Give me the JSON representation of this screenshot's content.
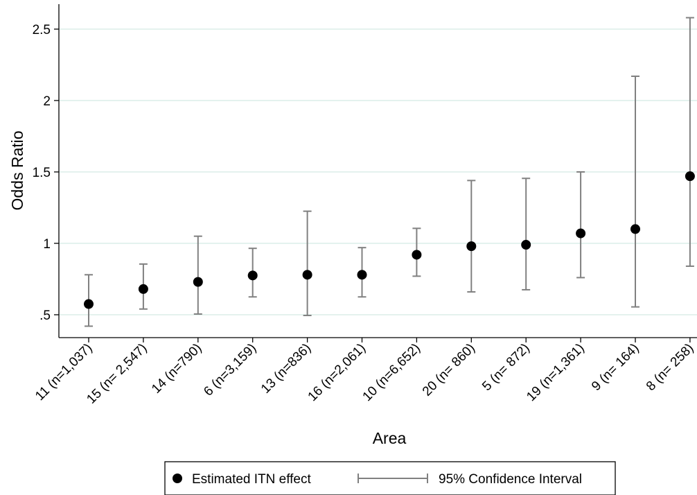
{
  "chart_data": {
    "type": "scatter",
    "xlabel": "Area",
    "ylabel": "Odds Ratio",
    "ylim": [
      0.35,
      2.65
    ],
    "y_ticks": [
      {
        "value": 0.5,
        "label": ".5"
      },
      {
        "value": 1,
        "label": "1"
      },
      {
        "value": 1.5,
        "label": "1.5"
      },
      {
        "value": 2,
        "label": "2"
      },
      {
        "value": 2.5,
        "label": "2.5"
      }
    ],
    "grid": true,
    "legend_position": "bottom",
    "categories": [
      "11 (n=1,037)",
      "15 (n= 2,547)",
      "14 (n=790)",
      "6 (n=3,159)",
      "13 (n=836)",
      "16 (n=2,061)",
      "10 (n=6,652)",
      "20 (n= 860)",
      "5 (n= 872)",
      "19 (n=1,361)",
      "9 (n= 164)",
      "8 (n= 258)"
    ],
    "series": [
      {
        "name": "Estimated ITN effect",
        "values": [
          0.575,
          0.68,
          0.73,
          0.775,
          0.78,
          0.78,
          0.92,
          0.98,
          0.99,
          1.07,
          1.1,
          1.47
        ]
      },
      {
        "name": "95% Confidence Interval",
        "lower": [
          0.42,
          0.54,
          0.505,
          0.625,
          0.495,
          0.625,
          0.77,
          0.66,
          0.675,
          0.76,
          0.555,
          0.84
        ],
        "upper": [
          0.78,
          0.855,
          1.05,
          0.965,
          1.225,
          0.97,
          1.105,
          1.44,
          1.455,
          1.5,
          2.17,
          2.58
        ]
      }
    ],
    "colors": {
      "point": "#000000",
      "interval": "#808080",
      "grid": "#dceee9",
      "axis": "#000000"
    }
  }
}
